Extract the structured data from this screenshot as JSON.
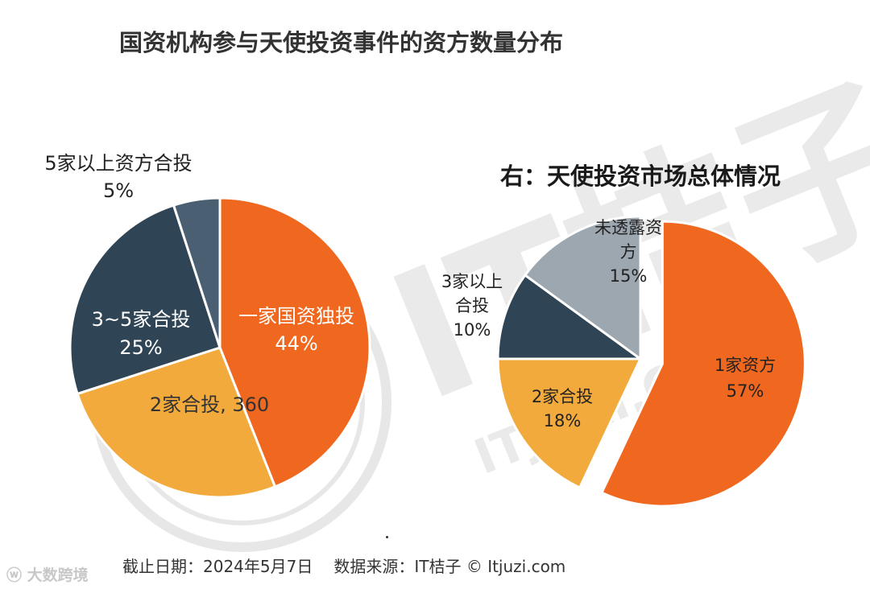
{
  "header": {
    "title": "国资机构参与天使投资事件的资方数量分布",
    "subtitle": "右：天使投资市场总体情况"
  },
  "chart_data": [
    {
      "type": "pie",
      "slices": [
        {
          "label": "一家国资独投",
          "value_label": "44%",
          "value": 44,
          "color": "#F0681F"
        },
        {
          "label": "2家合投, 360",
          "value_label": "",
          "value": 26,
          "color": "#F3AA3C"
        },
        {
          "label": "3~5家合投",
          "value_label": "25%",
          "value": 25,
          "color": "#2F4556"
        },
        {
          "label": "5家以上资方合投",
          "value_label": "5%",
          "value": 5,
          "color": "#4A6072"
        }
      ]
    },
    {
      "type": "pie",
      "title": "右：天使投资市场总体情况",
      "slices": [
        {
          "label": "1家资方",
          "value_label": "57%",
          "value": 57,
          "color": "#F0681F"
        },
        {
          "label": "2家合投",
          "value_label": "18%",
          "value": 18,
          "color": "#F3AA3C"
        },
        {
          "label": "3家以上合投",
          "value_label": "10%",
          "value": 10,
          "color": "#2F4556"
        },
        {
          "label": "未透露资方",
          "value_label": "15%",
          "value": 15,
          "color": "#9DA7B0"
        }
      ]
    }
  ],
  "footer": {
    "date": "截止日期：2024年5月7日",
    "source": "数据来源：IT桔子 © Itjuzi.com"
  },
  "brand": {
    "icon": "weibo-icon",
    "text": "大数跨境"
  },
  "watermark": {
    "text": "IT桔子",
    "url_text": "ITJUZI.COM"
  }
}
